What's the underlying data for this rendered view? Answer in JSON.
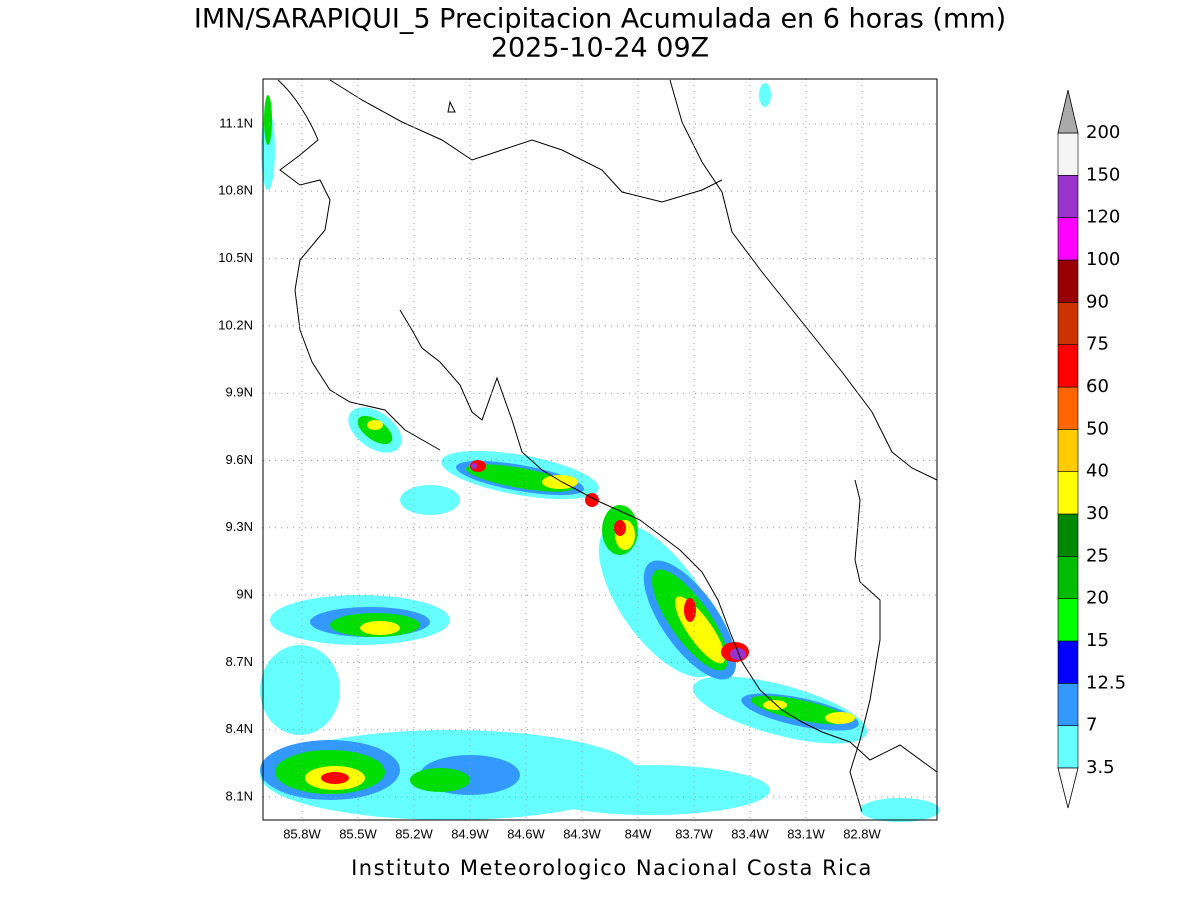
{
  "title": [
    "IMN/SARAPIQUI_5 Precipitacion Acumulada en 6 horas (mm)",
    "2025-10-24 09Z"
  ],
  "x_ticks": [
    "85.8W",
    "85.5W",
    "85.2W",
    "84.9W",
    "84.6W",
    "84.3W",
    "84W",
    "83.7W",
    "83.4W",
    "83.1W",
    "82.8W"
  ],
  "y_ticks": [
    "11.1N",
    "10.8N",
    "10.5N",
    "10.2N",
    "9.9N",
    "9.6N",
    "9.3N",
    "9N",
    "8.7N",
    "8.4N",
    "8.1N"
  ],
  "colorbar": {
    "labels": [
      "3.5",
      "7",
      "12.5",
      "15",
      "20",
      "25",
      "30",
      "40",
      "50",
      "60",
      "75",
      "90",
      "100",
      "120",
      "150",
      "200"
    ],
    "colors": [
      "#66ffff",
      "#3399ff",
      "#0000ff",
      "#00ff00",
      "#00bb00",
      "#008800",
      "#ffff00",
      "#ffcc00",
      "#ff6600",
      "#ff0000",
      "#cc3300",
      "#990000",
      "#ff00ff",
      "#9933cc",
      "#f5f5f5"
    ],
    "under_color": "#ffffff",
    "over_color": "#aaaaaa"
  },
  "footer": "Instituto Meteorologico Nacional Costa Rica"
}
